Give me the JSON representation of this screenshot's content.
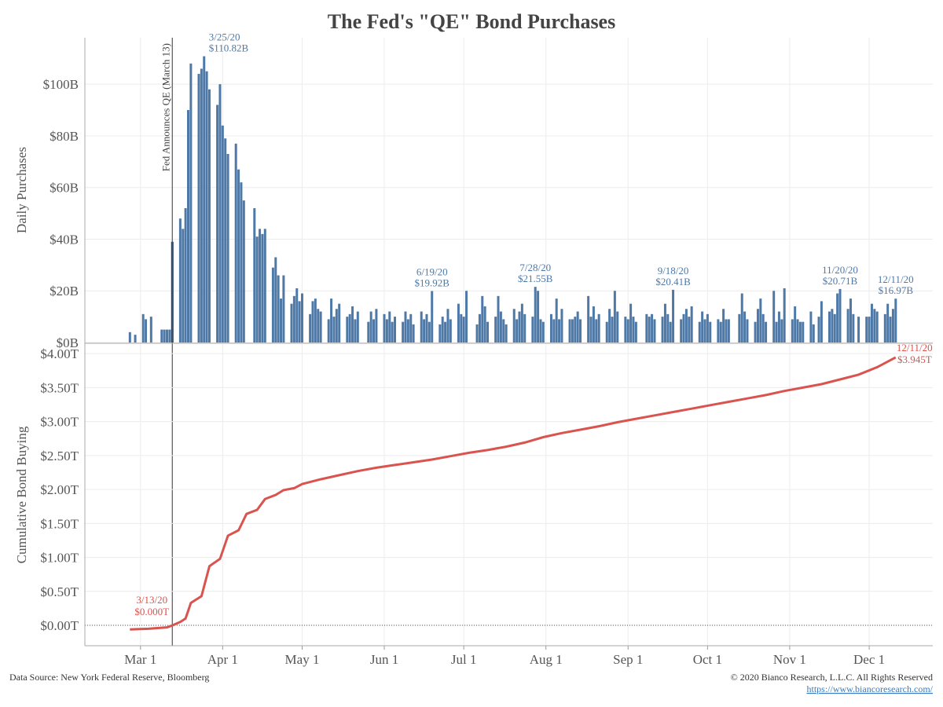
{
  "title": "The Fed's \"QE\" Bond Purchases",
  "source": "Data Source: New York Federal Reserve, Bloomberg",
  "copyright": "© 2020 Bianco Research, L.L.C. All Rights Reserved",
  "url": "https://www.biancoresearch.com/",
  "chart_data": [
    {
      "type": "bar",
      "y_label": "Daily Purchases",
      "color": "#4e79a7",
      "highlight": {
        "x": "3/13/20",
        "color": "#1f3d63"
      },
      "reference_line": {
        "x": "3/13/20",
        "label": "Fed Announces QE (March 13)"
      },
      "xlim": [
        "2/9/20",
        "12/25/20"
      ],
      "ylim": [
        0,
        118
      ],
      "yticks": [
        {
          "value": 0,
          "label": "$0B"
        },
        {
          "value": 20,
          "label": "$20B"
        },
        {
          "value": 40,
          "label": "$40B"
        },
        {
          "value": 60,
          "label": "$60B"
        },
        {
          "value": 80,
          "label": "$80B"
        },
        {
          "value": 100,
          "label": "$100B"
        }
      ],
      "grid": true,
      "x": [
        "2/26/20",
        "2/28/20",
        "3/2/20",
        "3/3/20",
        "3/5/20",
        "3/9/20",
        "3/10/20",
        "3/11/20",
        "3/12/20",
        "3/13/20",
        "3/16/20",
        "3/17/20",
        "3/18/20",
        "3/19/20",
        "3/20/20",
        "3/23/20",
        "3/24/20",
        "3/25/20",
        "3/26/20",
        "3/27/20",
        "3/30/20",
        "3/31/20",
        "4/1/20",
        "4/2/20",
        "4/3/20",
        "4/6/20",
        "4/7/20",
        "4/8/20",
        "4/9/20",
        "4/13/20",
        "4/14/20",
        "4/15/20",
        "4/16/20",
        "4/17/20",
        "4/20/20",
        "4/21/20",
        "4/22/20",
        "4/23/20",
        "4/24/20",
        "4/27/20",
        "4/28/20",
        "4/29/20",
        "4/30/20",
        "5/1/20",
        "5/4/20",
        "5/5/20",
        "5/6/20",
        "5/7/20",
        "5/8/20",
        "5/11/20",
        "5/12/20",
        "5/13/20",
        "5/14/20",
        "5/15/20",
        "5/18/20",
        "5/19/20",
        "5/20/20",
        "5/21/20",
        "5/22/20",
        "5/26/20",
        "5/27/20",
        "5/28/20",
        "5/29/20",
        "6/1/20",
        "6/2/20",
        "6/3/20",
        "6/4/20",
        "6/5/20",
        "6/8/20",
        "6/9/20",
        "6/10/20",
        "6/11/20",
        "6/12/20",
        "6/15/20",
        "6/16/20",
        "6/17/20",
        "6/18/20",
        "6/19/20",
        "6/22/20",
        "6/23/20",
        "6/24/20",
        "6/25/20",
        "6/26/20",
        "6/29/20",
        "6/30/20",
        "7/1/20",
        "7/2/20",
        "7/6/20",
        "7/7/20",
        "7/8/20",
        "7/9/20",
        "7/10/20",
        "7/13/20",
        "7/14/20",
        "7/15/20",
        "7/16/20",
        "7/17/20",
        "7/20/20",
        "7/21/20",
        "7/22/20",
        "7/23/20",
        "7/24/20",
        "7/27/20",
        "7/28/20",
        "7/29/20",
        "7/30/20",
        "7/31/20",
        "8/3/20",
        "8/4/20",
        "8/5/20",
        "8/6/20",
        "8/7/20",
        "8/10/20",
        "8/11/20",
        "8/12/20",
        "8/13/20",
        "8/14/20",
        "8/17/20",
        "8/18/20",
        "8/19/20",
        "8/20/20",
        "8/21/20",
        "8/24/20",
        "8/25/20",
        "8/26/20",
        "8/27/20",
        "8/28/20",
        "8/31/20",
        "9/1/20",
        "9/2/20",
        "9/3/20",
        "9/4/20",
        "9/8/20",
        "9/9/20",
        "9/10/20",
        "9/11/20",
        "9/14/20",
        "9/15/20",
        "9/16/20",
        "9/17/20",
        "9/18/20",
        "9/21/20",
        "9/22/20",
        "9/23/20",
        "9/24/20",
        "9/25/20",
        "9/28/20",
        "9/29/20",
        "9/30/20",
        "10/1/20",
        "10/2/20",
        "10/5/20",
        "10/6/20",
        "10/7/20",
        "10/8/20",
        "10/9/20",
        "10/13/20",
        "10/14/20",
        "10/15/20",
        "10/16/20",
        "10/19/20",
        "10/20/20",
        "10/21/20",
        "10/22/20",
        "10/23/20",
        "10/26/20",
        "10/27/20",
        "10/28/20",
        "10/29/20",
        "10/30/20",
        "11/2/20",
        "11/3/20",
        "11/4/20",
        "11/5/20",
        "11/6/20",
        "11/9/20",
        "11/10/20",
        "11/12/20",
        "11/13/20",
        "11/16/20",
        "11/17/20",
        "11/18/20",
        "11/19/20",
        "11/20/20",
        "11/23/20",
        "11/24/20",
        "11/25/20",
        "11/27/20",
        "11/30/20",
        "12/1/20",
        "12/2/20",
        "12/3/20",
        "12/4/20",
        "12/7/20",
        "12/8/20",
        "12/9/20",
        "12/10/20",
        "12/11/20"
      ],
      "values": [
        4,
        3,
        11,
        9,
        10,
        5,
        5,
        5,
        5,
        39,
        48,
        44,
        52,
        90,
        108,
        104,
        106,
        110.82,
        105,
        98,
        92,
        100,
        84,
        79,
        73,
        77,
        67,
        62,
        55,
        52,
        41,
        44,
        42,
        44,
        29,
        33,
        26,
        17,
        26,
        15,
        18,
        21,
        16,
        19,
        11,
        16,
        17,
        13,
        12,
        9,
        17,
        10,
        13,
        15,
        10,
        11,
        14,
        9,
        12,
        8,
        12,
        9,
        13,
        11,
        9,
        12,
        8,
        10,
        8,
        12,
        9,
        11,
        7,
        12,
        9,
        11,
        8,
        19.92,
        7,
        10,
        8,
        13,
        9,
        15,
        11,
        10,
        20,
        7,
        11,
        18,
        14,
        8,
        10,
        18,
        12,
        9,
        7,
        13,
        9,
        12,
        15,
        11,
        10,
        21.55,
        20,
        9,
        8,
        11,
        9,
        17,
        9,
        13,
        9,
        9,
        10,
        12,
        9,
        18,
        10,
        14,
        9,
        11,
        8,
        13,
        10,
        20,
        12,
        10,
        9,
        15,
        10,
        8,
        11,
        10,
        11,
        9,
        10,
        15,
        11,
        8,
        20.41,
        9,
        11,
        13,
        10,
        14,
        8,
        12,
        9,
        11,
        8,
        9,
        8,
        13,
        9,
        9,
        11,
        19,
        12,
        9,
        8,
        13,
        17,
        11,
        8,
        20,
        8,
        12,
        9,
        21,
        9,
        14,
        9,
        8,
        8,
        12,
        7,
        10,
        16,
        12,
        13,
        11,
        19,
        20.71,
        13,
        17,
        11,
        10,
        10,
        10,
        15,
        13,
        12,
        11,
        15,
        10,
        13,
        16.97
      ],
      "annotations": [
        {
          "x": "3/25/20",
          "label": "$110.82B"
        },
        {
          "x": "6/19/20",
          "label": "$19.92B"
        },
        {
          "x": "7/28/20",
          "label": "$21.55B"
        },
        {
          "x": "9/18/20",
          "label": "$20.41B"
        },
        {
          "x": "11/20/20",
          "label": "$20.71B"
        },
        {
          "x": "12/11/20",
          "label": "$16.97B"
        }
      ]
    },
    {
      "type": "line",
      "y_label": "Cumulative Bond Buying",
      "color": "#d9534f",
      "xlim": [
        "2/9/20",
        "12/25/20"
      ],
      "ylim": [
        -0.3,
        4.14
      ],
      "xticks": [
        {
          "value": "3/1/20",
          "label": "Mar 1"
        },
        {
          "value": "4/1/20",
          "label": "Apr 1"
        },
        {
          "value": "5/1/20",
          "label": "May 1"
        },
        {
          "value": "6/1/20",
          "label": "Jun 1"
        },
        {
          "value": "7/1/20",
          "label": "Jul 1"
        },
        {
          "value": "8/1/20",
          "label": "Aug 1"
        },
        {
          "value": "9/1/20",
          "label": "Sep 1"
        },
        {
          "value": "10/1/20",
          "label": "Oct 1"
        },
        {
          "value": "11/1/20",
          "label": "Nov 1"
        },
        {
          "value": "12/1/20",
          "label": "Dec 1"
        }
      ],
      "yticks": [
        {
          "value": 0,
          "label": "$0.00T"
        },
        {
          "value": 0.5,
          "label": "$0.50T"
        },
        {
          "value": 1,
          "label": "$1.00T"
        },
        {
          "value": 1.5,
          "label": "$1.50T"
        },
        {
          "value": 2,
          "label": "$2.00T"
        },
        {
          "value": 2.5,
          "label": "$2.50T"
        },
        {
          "value": 3,
          "label": "$3.00T"
        },
        {
          "value": 3.5,
          "label": "$3.50T"
        },
        {
          "value": 4,
          "label": "$4.00T"
        }
      ],
      "grid": true,
      "x": [
        "2/26/20",
        "3/4/20",
        "3/11/20",
        "3/13/20",
        "3/16/20",
        "3/18/20",
        "3/20/20",
        "3/24/20",
        "3/27/20",
        "3/31/20",
        "4/3/20",
        "4/7/20",
        "4/10/20",
        "4/14/20",
        "4/17/20",
        "4/21/20",
        "4/24/20",
        "4/28/20",
        "5/1/20",
        "5/8/20",
        "5/15/20",
        "5/22/20",
        "5/29/20",
        "6/5/20",
        "6/12/20",
        "6/19/20",
        "6/26/20",
        "7/3/20",
        "7/10/20",
        "7/17/20",
        "7/24/20",
        "7/31/20",
        "8/7/20",
        "8/14/20",
        "8/21/20",
        "8/28/20",
        "9/4/20",
        "9/11/20",
        "9/18/20",
        "9/25/20",
        "10/2/20",
        "10/9/20",
        "10/16/20",
        "10/23/20",
        "10/30/20",
        "11/6/20",
        "11/13/20",
        "11/20/20",
        "11/27/20",
        "12/4/20",
        "12/11/20"
      ],
      "values": [
        -0.06,
        -0.05,
        -0.03,
        0.0,
        0.05,
        0.1,
        0.33,
        0.43,
        0.87,
        0.98,
        1.32,
        1.4,
        1.64,
        1.7,
        1.86,
        1.92,
        1.99,
        2.02,
        2.08,
        2.15,
        2.21,
        2.27,
        2.32,
        2.36,
        2.4,
        2.44,
        2.49,
        2.54,
        2.58,
        2.63,
        2.69,
        2.77,
        2.83,
        2.88,
        2.93,
        2.99,
        3.04,
        3.09,
        3.14,
        3.19,
        3.24,
        3.29,
        3.34,
        3.39,
        3.45,
        3.5,
        3.55,
        3.62,
        3.69,
        3.8,
        3.945
      ],
      "annotations": [
        {
          "x": "3/13/20",
          "label": "$0.000T"
        },
        {
          "x": "12/11/20",
          "label": "$3.945T"
        }
      ]
    }
  ]
}
